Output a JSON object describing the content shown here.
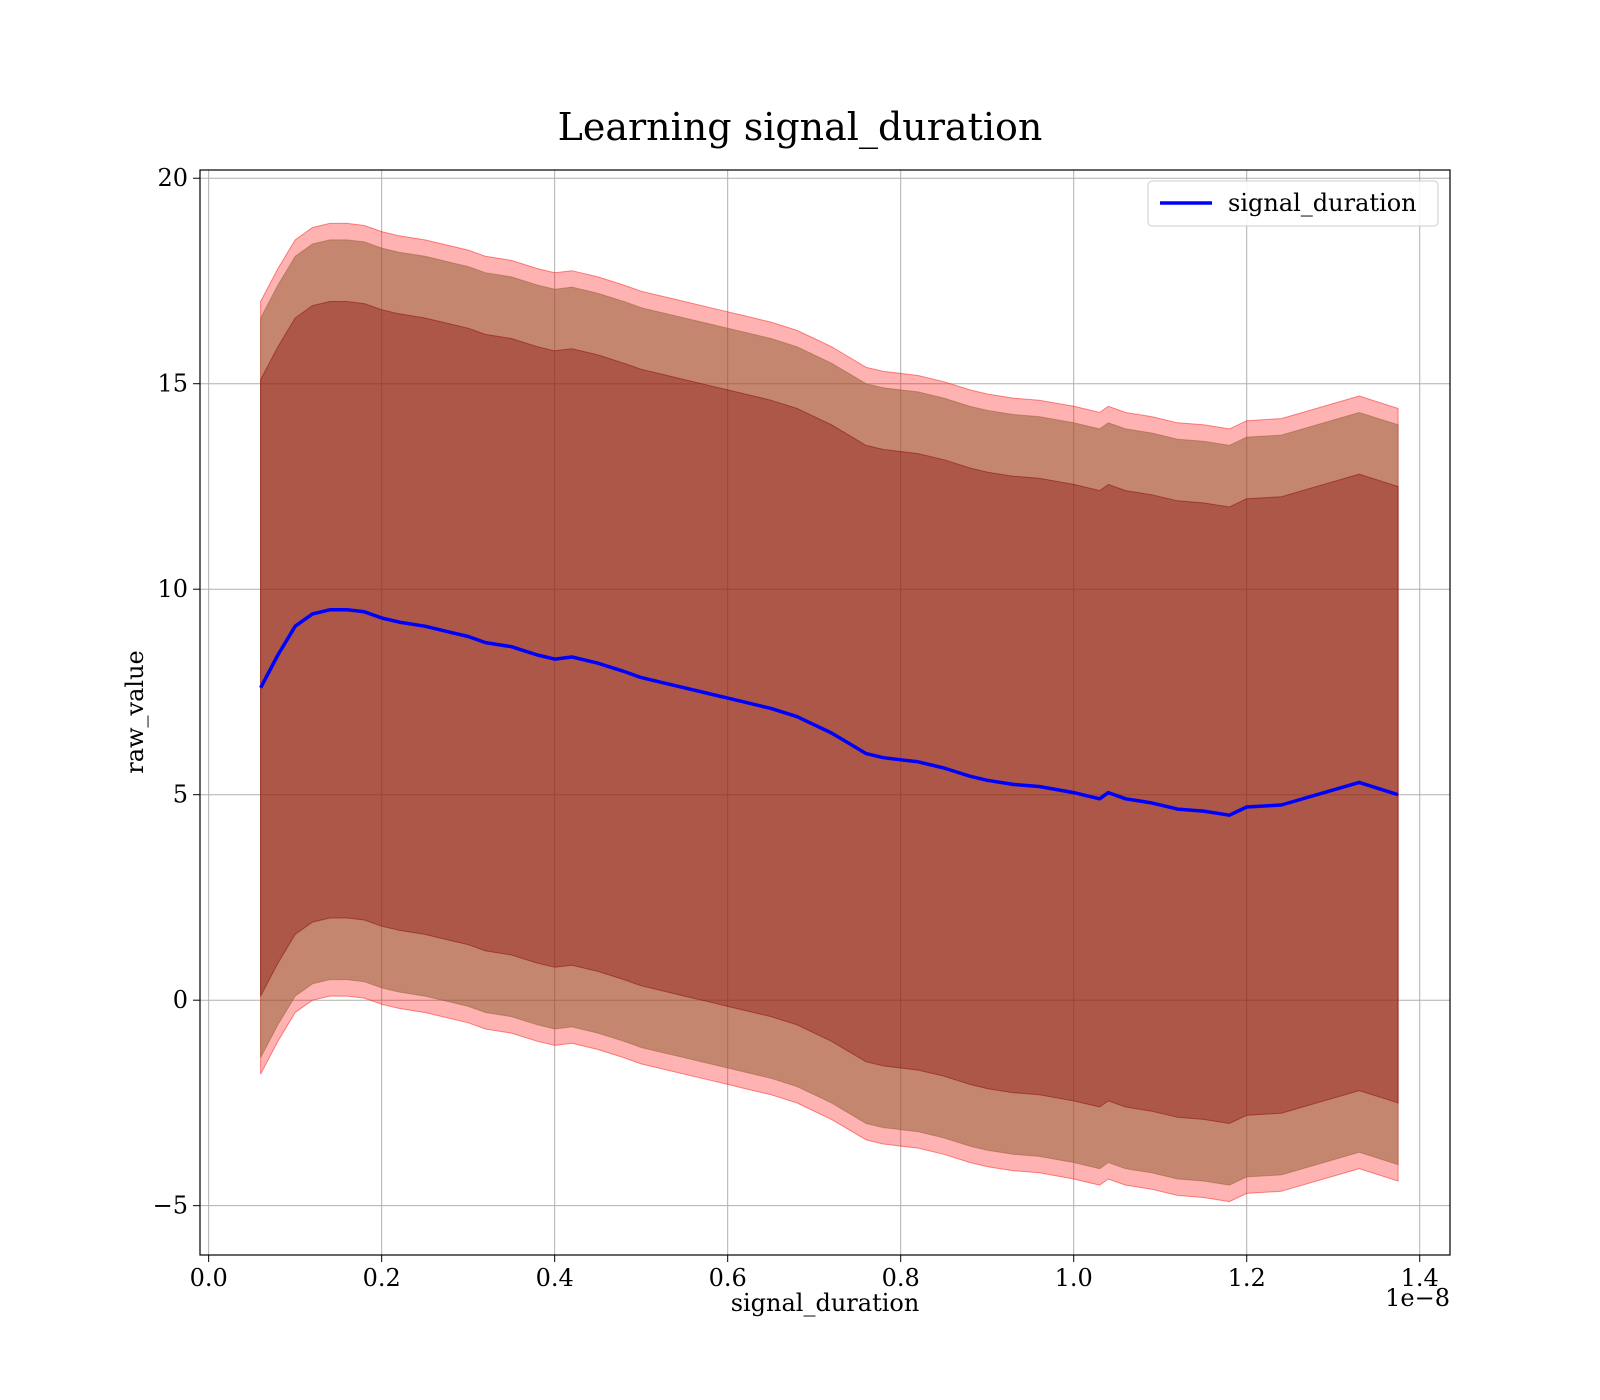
{
  "chart_data": {
    "type": "line",
    "title": "Learning signal_duration",
    "xlabel": "signal_duration",
    "ylabel": "raw_value",
    "x_offset_label": "1e−8",
    "xlim": [
      -0.01,
      1.435
    ],
    "ylim": [
      -6.2,
      20.2
    ],
    "xticks": [
      0.0,
      0.2,
      0.4,
      0.6,
      0.8,
      1.0,
      1.2,
      1.4
    ],
    "xtick_labels": [
      "0.0",
      "0.2",
      "0.4",
      "0.6",
      "0.8",
      "1.0",
      "1.2",
      "1.4"
    ],
    "yticks": [
      -5,
      0,
      5,
      10,
      15,
      20
    ],
    "ytick_labels": [
      "−5",
      "0",
      "5",
      "10",
      "15",
      "20"
    ],
    "grid": true,
    "legend": {
      "position": "top-right",
      "entries": [
        "signal_duration"
      ]
    },
    "colors": {
      "line": "#0000ff",
      "outer_band": "#ff0000",
      "mid_band": "#8b5a2b",
      "inner_band": "#800000"
    },
    "x": [
      0.06,
      0.08,
      0.1,
      0.12,
      0.14,
      0.16,
      0.18,
      0.2,
      0.22,
      0.25,
      0.28,
      0.3,
      0.32,
      0.35,
      0.38,
      0.4,
      0.42,
      0.45,
      0.48,
      0.5,
      0.52,
      0.55,
      0.58,
      0.6,
      0.62,
      0.65,
      0.68,
      0.7,
      0.72,
      0.74,
      0.76,
      0.78,
      0.8,
      0.82,
      0.85,
      0.88,
      0.9,
      0.93,
      0.96,
      1.0,
      1.02,
      1.03,
      1.04,
      1.06,
      1.09,
      1.12,
      1.15,
      1.18,
      1.2,
      1.24,
      1.33,
      1.375
    ],
    "series": [
      {
        "name": "signal_duration",
        "values": [
          7.6,
          8.4,
          9.1,
          9.4,
          9.5,
          9.5,
          9.45,
          9.3,
          9.2,
          9.1,
          8.95,
          8.85,
          8.7,
          8.6,
          8.4,
          8.3,
          8.35,
          8.2,
          8.0,
          7.85,
          7.75,
          7.6,
          7.45,
          7.35,
          7.25,
          7.1,
          6.9,
          6.7,
          6.5,
          6.25,
          6.0,
          5.9,
          5.85,
          5.8,
          5.65,
          5.45,
          5.35,
          5.25,
          5.2,
          5.05,
          4.95,
          4.9,
          5.05,
          4.9,
          4.8,
          4.65,
          4.6,
          4.5,
          4.7,
          4.75,
          5.3,
          5.0
        ]
      }
    ],
    "bands": [
      {
        "width": 9.4,
        "color": "#ff0000",
        "opacity": 0.3
      },
      {
        "width": 9.0,
        "color": "#8b5a2b",
        "opacity": 0.5
      },
      {
        "width": 7.5,
        "color": "#800000",
        "opacity": 0.35
      }
    ]
  }
}
